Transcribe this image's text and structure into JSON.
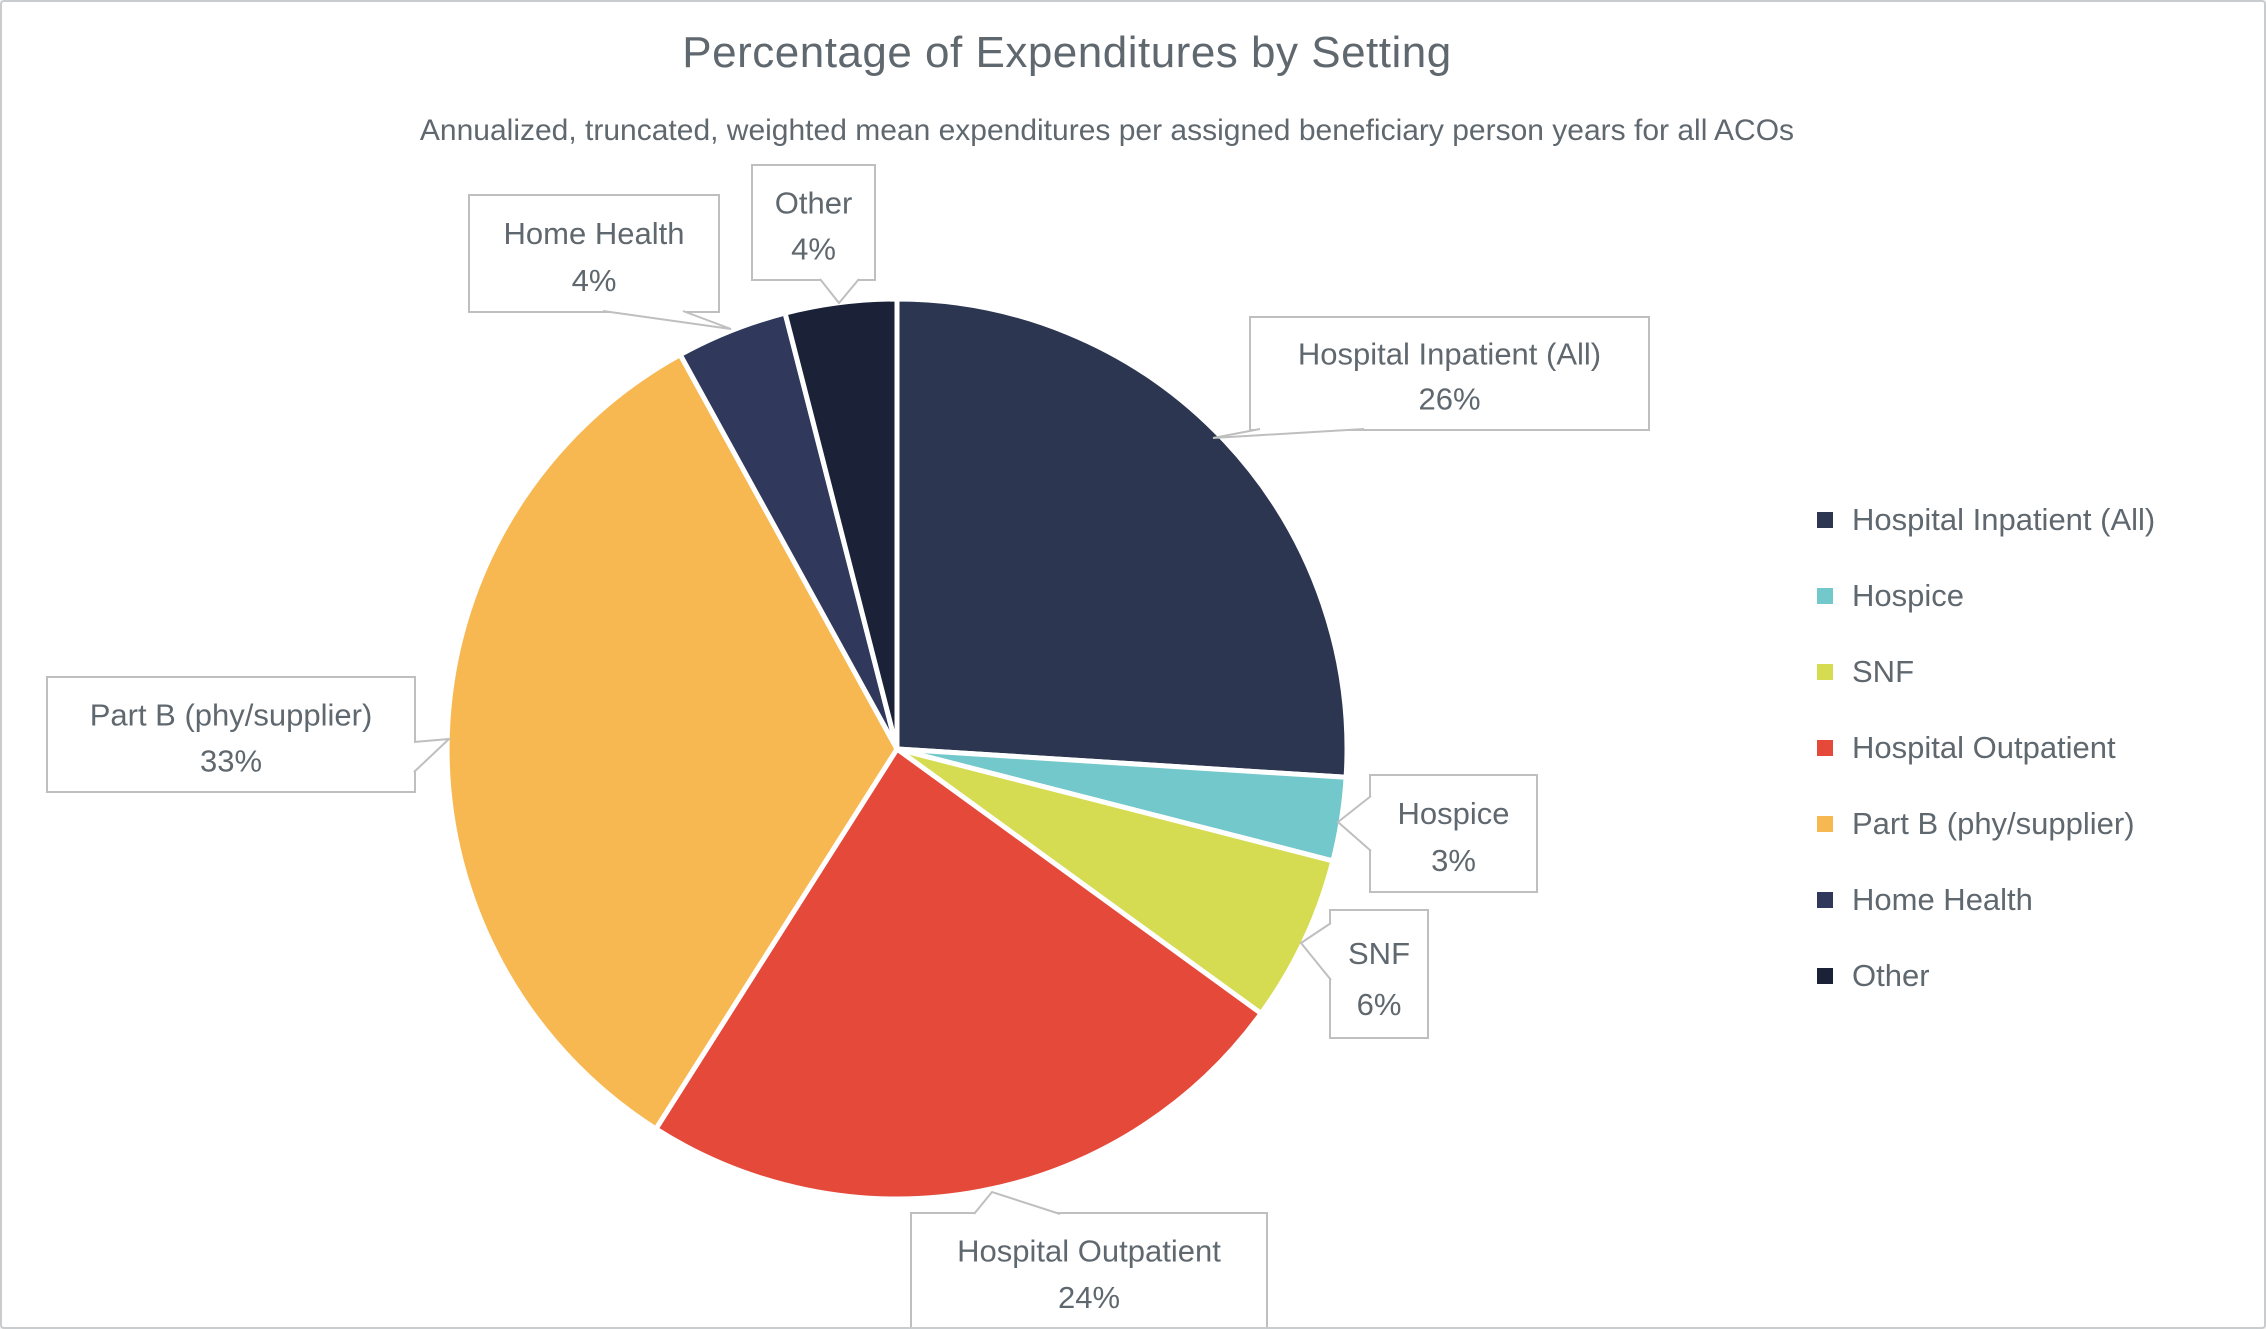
{
  "title": "Percentage of Expenditures by Setting",
  "subtitle": "Annualized, truncated, weighted mean expenditures per assigned beneficiary person years for all ACOs",
  "colors": {
    "background": "#FFFFFF",
    "frame_border": "#C9CCCE",
    "text": "#60686F",
    "callout_border": "#BFBFBF",
    "slice_gap": "#FFFFFF"
  },
  "chart_data": {
    "type": "pie",
    "start_angle_deg": 0,
    "direction": "clockwise",
    "legend_position": "right",
    "slices": [
      {
        "id": "hospital-inpatient",
        "label": "Hospital Inpatient (All)",
        "value": 26,
        "pct_label": "26%",
        "color": "#2D3650"
      },
      {
        "id": "hospice",
        "label": "Hospice",
        "value": 3,
        "pct_label": "3%",
        "color": "#72C8CB"
      },
      {
        "id": "snf",
        "label": "SNF",
        "value": 6,
        "pct_label": "6%",
        "color": "#D6DC52"
      },
      {
        "id": "hospital-outpatient",
        "label": "Hospital Outpatient",
        "value": 24,
        "pct_label": "24%",
        "color": "#E4493A"
      },
      {
        "id": "part-b",
        "label": "Part B (phy/supplier)",
        "value": 33,
        "pct_label": "33%",
        "color": "#F8B851"
      },
      {
        "id": "home-health",
        "label": "Home Health",
        "value": 4,
        "pct_label": "4%",
        "color": "#30395B"
      },
      {
        "id": "other",
        "label": "Other",
        "value": 4,
        "pct_label": "4%",
        "color": "#1B2238"
      }
    ],
    "legend_entries": [
      "Hospital Inpatient (All)",
      "Hospice",
      "SNF",
      "Hospital Outpatient",
      "Part B (phy/supplier)",
      "Home Health",
      "Other"
    ]
  }
}
